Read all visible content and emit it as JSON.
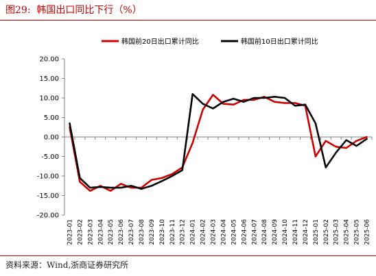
{
  "figure": {
    "title": "图29:  韩国出口同比下行（%）",
    "source": "资料来源：Wind,浙商证券研究所"
  },
  "colors": {
    "red": "#cc0000",
    "black": "#000000",
    "axis": "#808080",
    "rule": "#c00000"
  },
  "chart_data": {
    "type": "line",
    "title": "",
    "xlabel": "",
    "ylabel": "",
    "ylim": [
      -20,
      20
    ],
    "yticks": [
      20,
      15,
      10,
      5,
      0,
      -5,
      -10,
      -15,
      -20
    ],
    "ytick_labels": [
      "20.00",
      "15.00",
      "10.00",
      "5.00",
      "0.00",
      "-5.00",
      "-10.00",
      "-15.00",
      "-20.00"
    ],
    "grid": false,
    "legend": "top",
    "categories": [
      "2023-01",
      "2023-02",
      "2023-03",
      "2023-04",
      "2023-05",
      "2023-06",
      "2023-07",
      "2023-08",
      "2023-09",
      "2023-10",
      "2023-11",
      "2023-12",
      "2024-01",
      "2024-02",
      "2024-03",
      "2024-04",
      "2024-05",
      "2024-06",
      "2024-07",
      "2024-08",
      "2024-09",
      "2024-10",
      "2024-11",
      "2024-12",
      "2025-01",
      "2025-02",
      "2025-03",
      "2025-04",
      "2025-05",
      "2025-06"
    ],
    "series": [
      {
        "name": "韩国前20日出口累计同比",
        "color": "#cc0000",
        "values": [
          2.5,
          -11.5,
          -13.8,
          -12.5,
          -13.8,
          -12.0,
          -13.0,
          -13.0,
          -11.0,
          -10.5,
          -9.5,
          -7.8,
          -1.5,
          7.0,
          10.8,
          8.5,
          8.3,
          9.5,
          9.5,
          10.3,
          9.0,
          8.7,
          8.7,
          8.0,
          -5.0,
          -1.0,
          -2.5,
          -2.8,
          -1.0,
          0.0
        ]
      },
      {
        "name": "韩国前10日出口累计同比",
        "color": "#000000",
        "values": [
          3.5,
          -10.5,
          -13.0,
          -12.8,
          -13.0,
          -13.0,
          -12.5,
          -13.3,
          -12.5,
          -11.3,
          -10.0,
          -8.5,
          11.0,
          8.5,
          7.3,
          9.0,
          9.8,
          9.0,
          10.0,
          10.0,
          10.3,
          10.0,
          8.0,
          8.3,
          3.5,
          -7.8,
          -4.0,
          -0.8,
          -2.3,
          -0.5
        ]
      }
    ]
  }
}
